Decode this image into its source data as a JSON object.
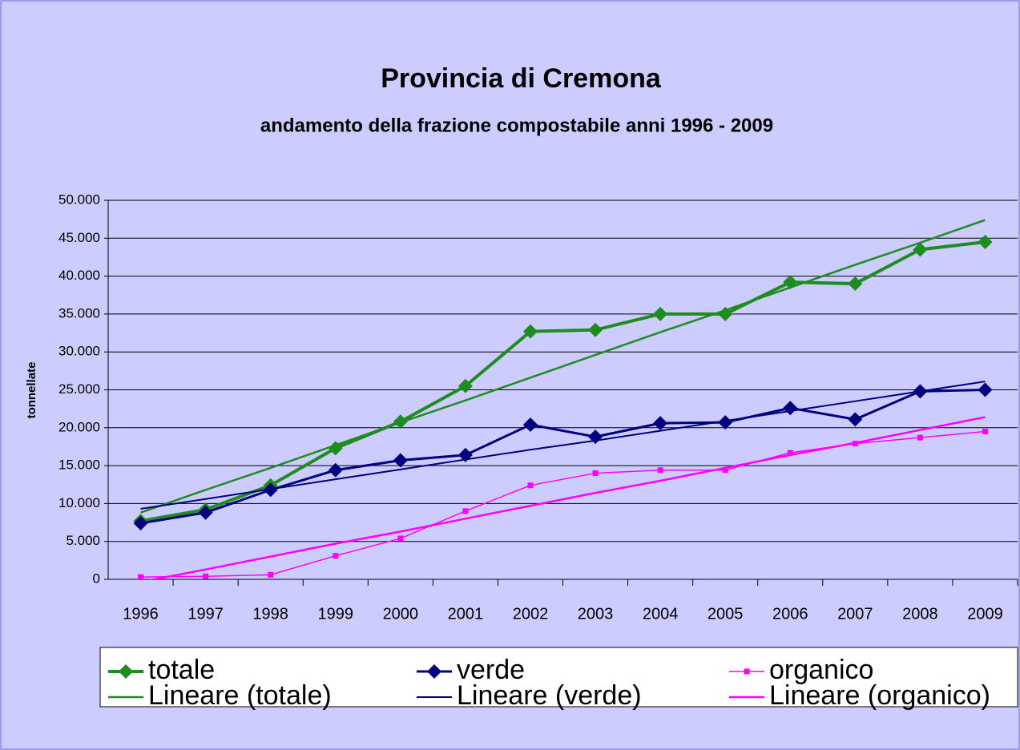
{
  "chart_data": {
    "type": "line",
    "title": "Provincia di Cremona",
    "subtitle": "andamento della frazione compostabile anni 1996 - 2009",
    "y_label": "tonnellate",
    "categories": [
      "1996",
      "1997",
      "1998",
      "1999",
      "2000",
      "2001",
      "2002",
      "2003",
      "2004",
      "2005",
      "2006",
      "2007",
      "2008",
      "2009"
    ],
    "series": [
      {
        "name": "totale",
        "color": "#1e8c1e",
        "marker": "diamond",
        "line_width": 4,
        "values": [
          7700,
          9200,
          12400,
          17300,
          20800,
          25500,
          32700,
          32900,
          35000,
          35000,
          39200,
          39000,
          43500,
          44500
        ]
      },
      {
        "name": "verde",
        "color": "#000080",
        "marker": "diamond",
        "line_width": 3,
        "values": [
          7400,
          8800,
          11800,
          14400,
          15700,
          16400,
          20400,
          18800,
          20600,
          20700,
          22600,
          21100,
          24800,
          25000
        ]
      },
      {
        "name": "organico",
        "color": "#ff00ff",
        "marker": "square",
        "line_width": 1.5,
        "values": [
          300,
          400,
          600,
          3100,
          5400,
          9000,
          12400,
          14000,
          14400,
          14400,
          16700,
          17900,
          18700,
          19500
        ]
      },
      {
        "name": "Lineare (totale)",
        "color": "#1e8c1e",
        "marker": "none",
        "line_width": 2.5,
        "values": [
          8800,
          11800,
          14700,
          17700,
          20700,
          23600,
          26600,
          29600,
          32600,
          35500,
          38500,
          41500,
          44400,
          47400
        ]
      },
      {
        "name": "Lineare (verde)",
        "color": "#000080",
        "marker": "none",
        "line_width": 2,
        "values": [
          9300,
          10600,
          11900,
          13200,
          14500,
          15800,
          17100,
          18300,
          19600,
          20900,
          22200,
          23500,
          24800,
          26100
        ]
      },
      {
        "name": "Lineare (organico)",
        "color": "#ff00ff",
        "marker": "none",
        "line_width": 2.5,
        "values": [
          -350,
          1300,
          3000,
          4700,
          6300,
          8000,
          9700,
          11400,
          13000,
          14700,
          16400,
          18000,
          19700,
          21400
        ]
      }
    ],
    "ylim": [
      0,
      50000
    ],
    "yticks": [
      0,
      {
        "value": 5000,
        "label": "5.000"
      },
      {
        "value": 10000,
        "label": "10.000"
      },
      {
        "value": 15000,
        "label": "15.000"
      },
      {
        "value": 20000,
        "label": "20.000"
      },
      {
        "value": 25000,
        "label": "25.000"
      },
      {
        "value": 30000,
        "label": "30.000"
      },
      {
        "value": 35000,
        "label": "35.000"
      },
      {
        "value": 40000,
        "label": "40.000"
      },
      {
        "value": 45000,
        "label": "45.000"
      },
      {
        "value": 50000,
        "label": "50.000"
      }
    ],
    "grid": true,
    "legend": "bottom"
  }
}
